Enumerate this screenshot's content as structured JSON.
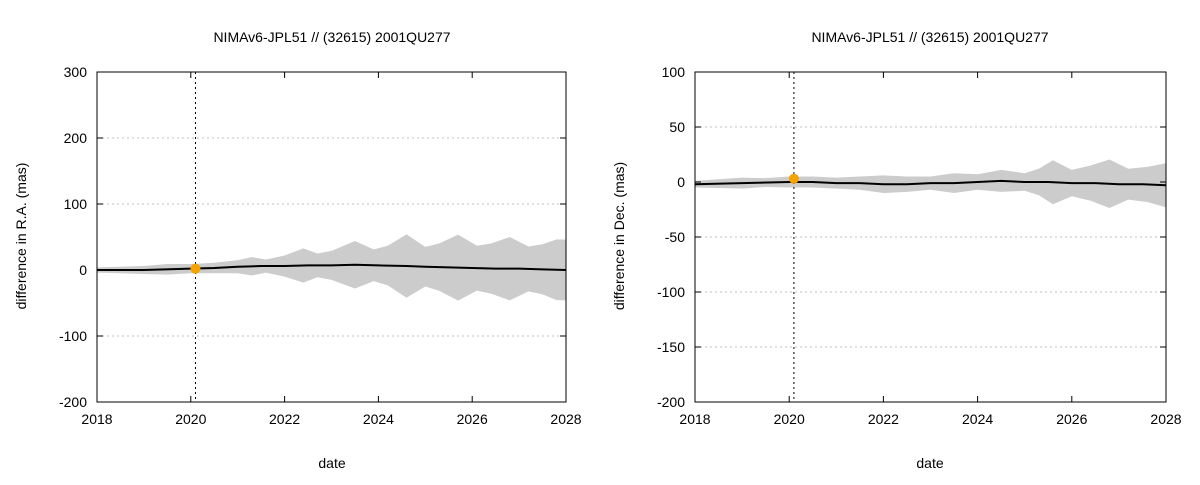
{
  "chart_data": [
    {
      "type": "line",
      "title": "NIMAv6-JPL51 // (32615) 2001QU277",
      "xlabel": "date",
      "ylabel": "difference in R.A. (mas)",
      "xlim": [
        2018,
        2028
      ],
      "ylim": [
        -200,
        300
      ],
      "xticks": [
        2018,
        2020,
        2022,
        2024,
        2026,
        2028
      ],
      "yticks": [
        -200,
        -100,
        0,
        100,
        200,
        300
      ],
      "grid": true,
      "reference_line_x": 2020.1,
      "marker": {
        "x": 2020.1,
        "y": 2,
        "color": "#f5a300"
      },
      "band_color": "#cccccc",
      "line_color": "#000000",
      "series": [
        {
          "x": [
            2018,
            2019,
            2020,
            2020.5,
            2021,
            2021.5,
            2022,
            2022.5,
            2023,
            2023.5,
            2024,
            2024.6,
            2025,
            2025.5,
            2026,
            2026.5,
            2027,
            2027.5,
            2028
          ],
          "values": [
            0,
            0,
            2,
            3,
            5,
            6,
            6,
            7,
            7,
            8,
            7,
            6,
            5,
            4,
            3,
            2,
            2,
            1,
            0
          ]
        }
      ],
      "band": {
        "x": [
          2018,
          2018.5,
          2019,
          2019.5,
          2020,
          2020.5,
          2021,
          2021.3,
          2021.6,
          2022,
          2022.4,
          2022.7,
          2023,
          2023.5,
          2023.9,
          2024.2,
          2024.6,
          2025,
          2025.3,
          2025.7,
          2026.1,
          2026.4,
          2026.8,
          2027.2,
          2027.5,
          2027.8,
          2028
        ],
        "half_width": [
          4,
          5,
          6,
          8,
          7,
          8,
          10,
          14,
          10,
          16,
          26,
          18,
          22,
          36,
          24,
          30,
          48,
          30,
          36,
          50,
          34,
          38,
          48,
          34,
          38,
          46,
          46
        ]
      }
    },
    {
      "type": "line",
      "title": "NIMAv6-JPL51 // (32615) 2001QU277",
      "xlabel": "date",
      "ylabel": "difference in Dec. (mas)",
      "xlim": [
        2018,
        2028
      ],
      "ylim": [
        -200,
        100
      ],
      "xticks": [
        2018,
        2020,
        2022,
        2024,
        2026,
        2028
      ],
      "yticks": [
        -200,
        -150,
        -100,
        -50,
        0,
        50,
        100
      ],
      "grid": true,
      "reference_line_x": 2020.1,
      "marker": {
        "x": 2020.1,
        "y": 3,
        "color": "#f5a300"
      },
      "band_color": "#cccccc",
      "line_color": "#000000",
      "series": [
        {
          "x": [
            2018,
            2019,
            2020,
            2020.5,
            2021,
            2021.5,
            2022,
            2022.5,
            2023,
            2023.5,
            2024,
            2024.5,
            2025,
            2025.5,
            2026,
            2026.5,
            2027,
            2027.5,
            2028
          ],
          "values": [
            -2,
            -1,
            0,
            0,
            -1,
            -1,
            -2,
            -2,
            -1,
            -1,
            0,
            1,
            0,
            0,
            -1,
            -1,
            -2,
            -2,
            -3
          ]
        }
      ],
      "band": {
        "x": [
          2018,
          2018.5,
          2019,
          2019.5,
          2020,
          2020.5,
          2021,
          2021.5,
          2022,
          2022.5,
          2023,
          2023.5,
          2024,
          2024.5,
          2025,
          2025.3,
          2025.6,
          2026,
          2026.4,
          2026.8,
          2027.2,
          2027.6,
          2028
        ],
        "half_width": [
          3,
          4,
          5,
          4,
          5,
          5,
          5,
          6,
          8,
          7,
          6,
          9,
          7,
          10,
          8,
          12,
          20,
          12,
          16,
          22,
          14,
          16,
          20
        ]
      }
    }
  ]
}
